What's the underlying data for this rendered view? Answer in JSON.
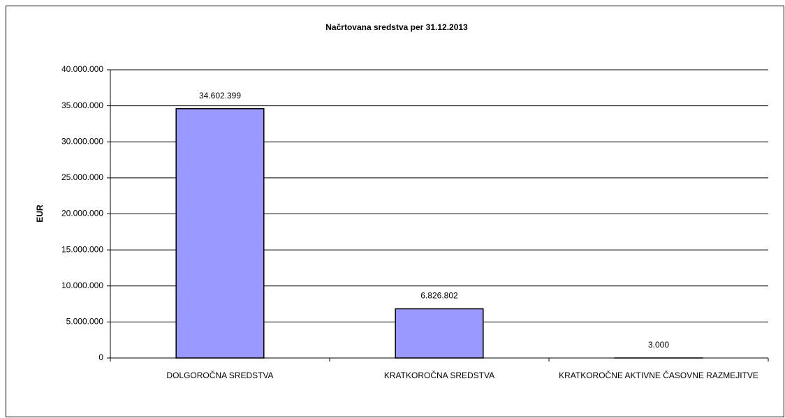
{
  "chart_data": {
    "type": "bar",
    "title": "Načrtovana sredstva per 31.12.2013",
    "y_label": "EUR",
    "categories": [
      "DOLGOROČNA SREDSTVA",
      "KRATKOROČNA SREDSTVA",
      "KRATKOROČNE AKTIVNE ČASOVNE RAZMEJITVE"
    ],
    "values": [
      34602399,
      6826802,
      3000
    ],
    "value_labels": [
      "34.602.399",
      "6.826.802",
      "3.000"
    ],
    "color": "#9999ff",
    "ylim": [
      0,
      40000000
    ],
    "yticks": [
      0,
      {
        "value": 5000000,
        "label": "5.000.000"
      },
      {
        "value": 10000000,
        "label": "10.000.000"
      },
      {
        "value": 15000000,
        "label": "15.000.000"
      },
      {
        "value": 20000000,
        "label": "20.000.000"
      },
      {
        "value": 25000000,
        "label": "25.000.000"
      },
      {
        "value": 30000000,
        "label": "30.000.000"
      },
      {
        "value": 35000000,
        "label": "35.000.000"
      },
      {
        "value": 40000000,
        "label": "40.000.000"
      }
    ],
    "grid": true
  }
}
